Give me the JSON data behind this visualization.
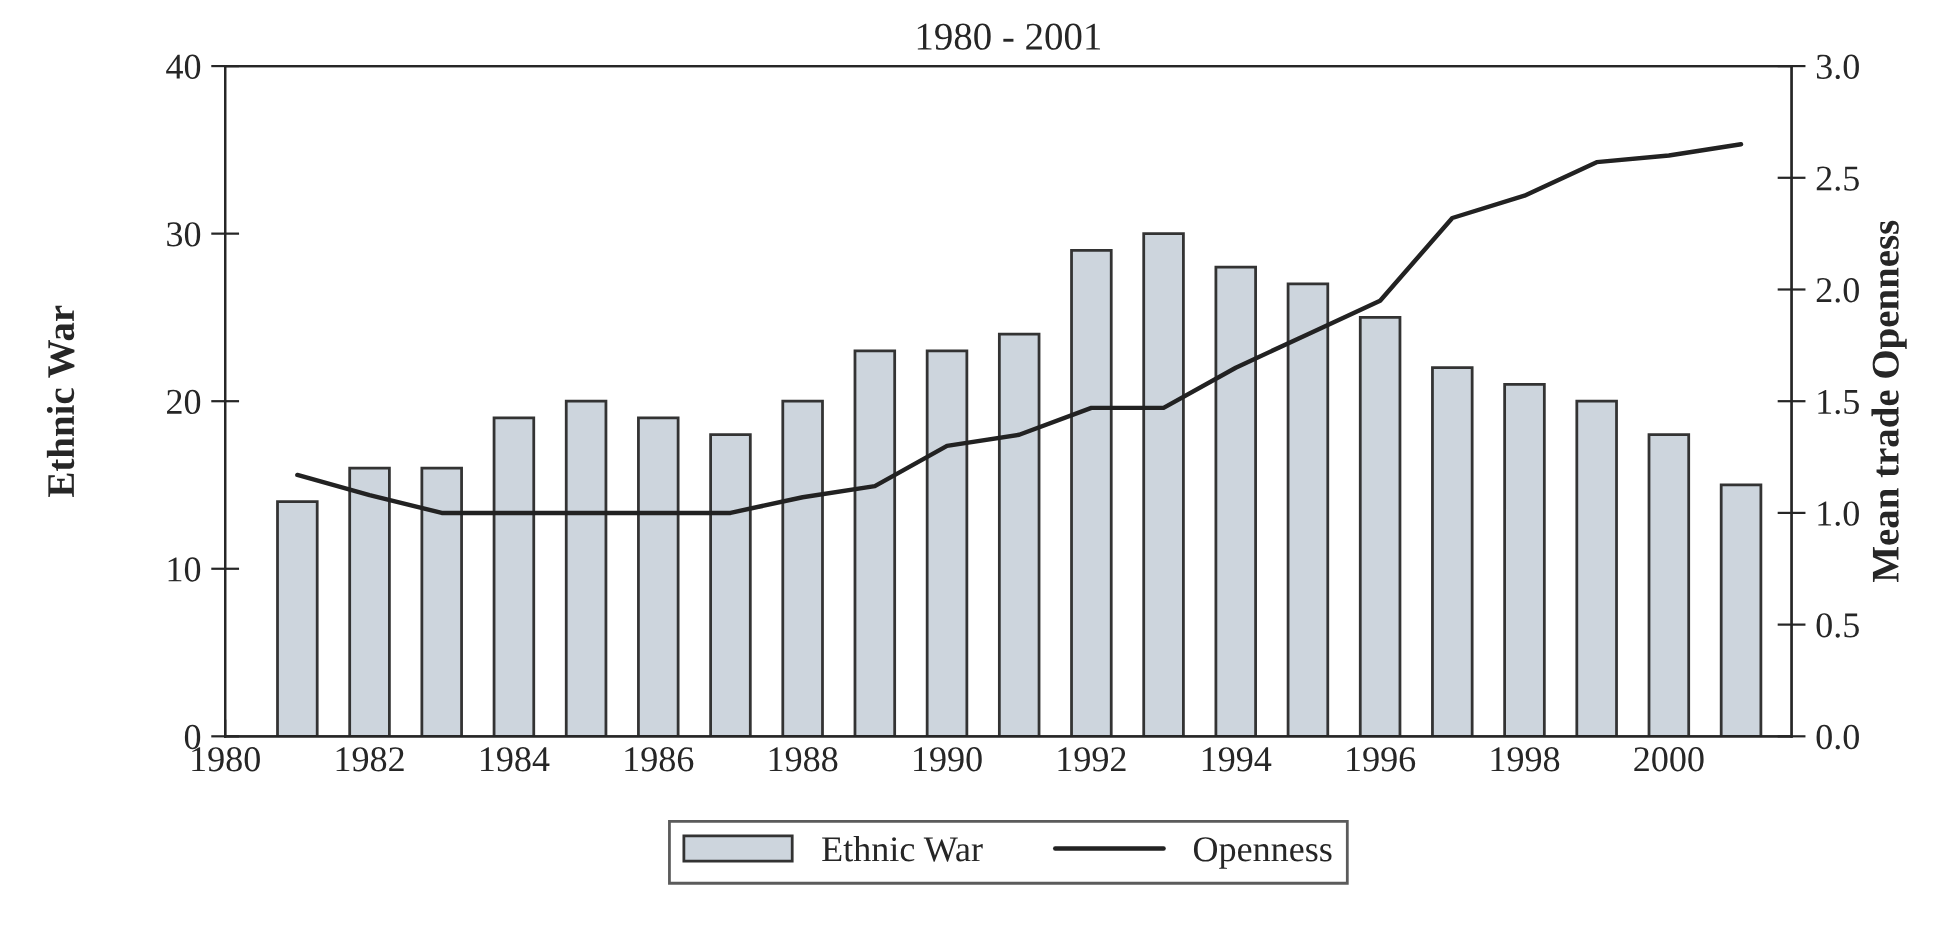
{
  "chart_data": {
    "type": "bar",
    "title": "1980 - 2001",
    "x": [
      1981,
      1982,
      1983,
      1984,
      1985,
      1986,
      1987,
      1988,
      1989,
      1990,
      1991,
      1992,
      1993,
      1994,
      1995,
      1996,
      1997,
      1998,
      1999,
      2000,
      2001
    ],
    "series": [
      {
        "name": "Ethnic War",
        "color": "#cdd5dd",
        "values": [
          14,
          16,
          16,
          19,
          20,
          19,
          18,
          20,
          23,
          23,
          24,
          29,
          30,
          28,
          27,
          25,
          22,
          21,
          20,
          18,
          15
        ]
      },
      {
        "name": "Openness",
        "type": "line",
        "axis": "y2",
        "color": "#222222",
        "values": [
          1.17,
          1.08,
          1.0,
          1.0,
          1.0,
          1.0,
          1.0,
          1.07,
          1.12,
          1.3,
          1.35,
          1.47,
          1.47,
          1.65,
          1.8,
          1.95,
          2.32,
          2.42,
          2.57,
          2.6,
          2.65
        ]
      }
    ],
    "xlim": [
      1980,
      2001.7
    ],
    "xticks": [
      1980,
      {
        "value": 1981,
        "label": null
      },
      1982,
      {
        "value": 1983,
        "label": null
      },
      1984,
      {
        "value": 1985,
        "label": null
      },
      1986,
      {
        "value": 1987,
        "label": null
      },
      1988,
      {
        "value": 1989,
        "label": null
      },
      1990,
      {
        "value": 1991,
        "label": null
      },
      1992,
      {
        "value": 1993,
        "label": null
      },
      1994,
      {
        "value": 1995,
        "label": null
      },
      1996,
      {
        "value": 1997,
        "label": null
      },
      1998,
      {
        "value": 1999,
        "label": null
      },
      2000,
      {
        "value": 2001,
        "label": null
      }
    ],
    "ylim": [
      0,
      40
    ],
    "yticks": [
      0,
      10,
      20,
      30,
      40
    ],
    "y2lim": [
      0,
      3.0
    ],
    "y2ticks": [
      {
        "value": 0,
        "label": "0.0"
      },
      0.5,
      {
        "value": 1,
        "label": "1.0"
      },
      1.5,
      {
        "value": 2,
        "label": "2.0"
      },
      2.5,
      {
        "value": 3,
        "label": "3.0"
      }
    ],
    "ylabel": "Ethnic War",
    "y2label": "Mean trade Openness",
    "legend": "bottom",
    "grid": false
  }
}
